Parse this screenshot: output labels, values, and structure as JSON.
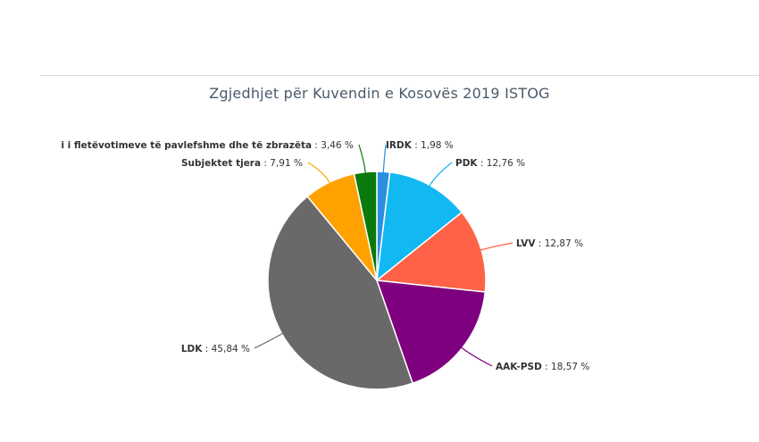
{
  "chart_data": {
    "type": "pie",
    "title": "Zgjedhjet për Kuvendin e Kosovës 2019 ISTOG",
    "slices": [
      {
        "label": "IRDK",
        "value": 1.98,
        "value_text": "1,98 %",
        "color": "#2b8fe0"
      },
      {
        "label": "PDK",
        "value": 12.76,
        "value_text": "12,76 %",
        "color": "#12b8f2"
      },
      {
        "label": "LVV",
        "value": 12.87,
        "value_text": "12,87 %",
        "color": "#ff6247"
      },
      {
        "label": "AAK-PSD",
        "value": 18.57,
        "value_text": "18,57 %",
        "color": "#7f007f"
      },
      {
        "label": "LDK",
        "value": 45.84,
        "value_text": "45,84 %",
        "color": "#696969"
      },
      {
        "label": "Subjektet tjera",
        "value": 7.91,
        "value_text": "7,91 %",
        "color": "#ffa200"
      },
      {
        "label": "i i fletëvotimeve të pavlefshme dhe të zbrazëta",
        "value": 3.46,
        "value_text": "3,46 %",
        "color": "#0a7a0a"
      }
    ]
  }
}
